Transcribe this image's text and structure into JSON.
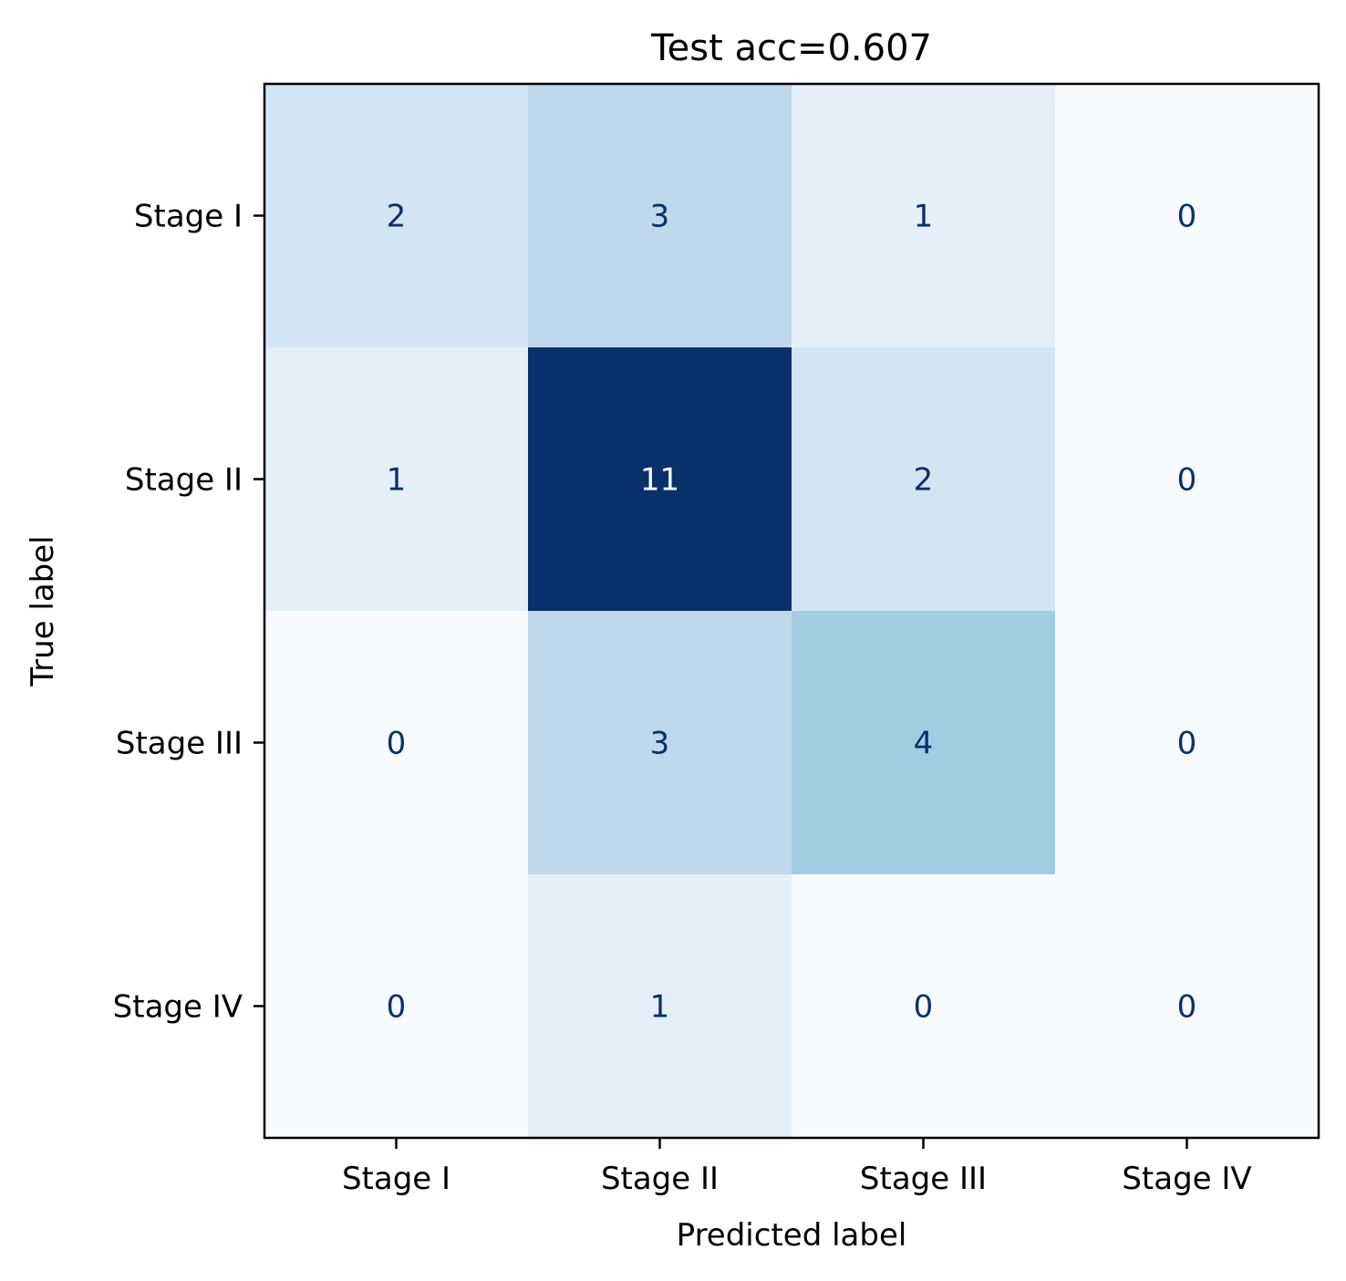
{
  "chart_data": {
    "type": "heatmap",
    "title": "Test acc=0.607",
    "xlabel": "Predicted label",
    "ylabel": "True label",
    "x_categories": [
      "Stage I",
      "Stage II",
      "Stage III",
      "Stage IV"
    ],
    "y_categories": [
      "Stage I",
      "Stage II",
      "Stage III",
      "Stage IV"
    ],
    "matrix": [
      [
        2,
        3,
        1,
        0
      ],
      [
        1,
        11,
        2,
        0
      ],
      [
        0,
        3,
        4,
        0
      ],
      [
        0,
        1,
        0,
        0
      ]
    ],
    "colormap": "Blues",
    "vmin": 0,
    "vmax": 11,
    "colorbar": false
  }
}
